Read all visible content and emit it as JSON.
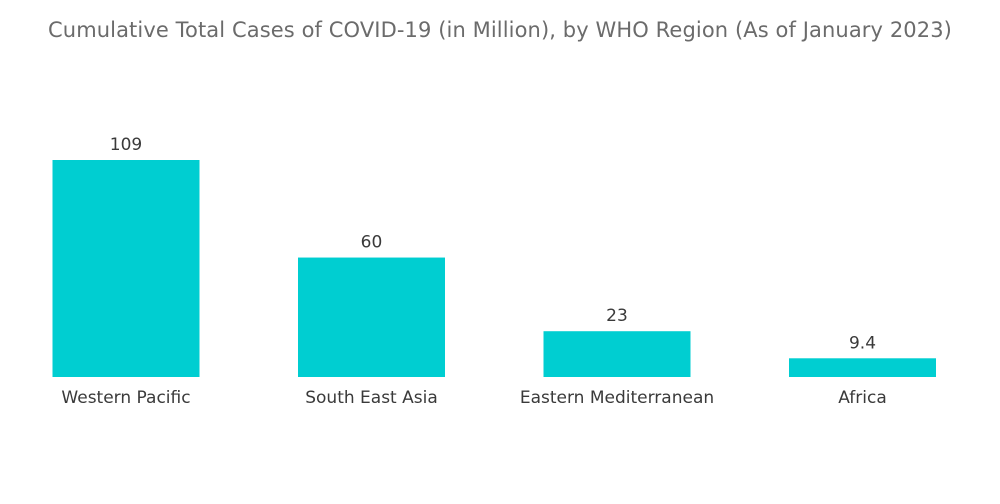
{
  "chart_data": {
    "type": "bar",
    "title": "Cumulative Total Cases of COVID-19 (in Million), by WHO Region (As of January 2023)",
    "categories": [
      "Western Pacific",
      "South East Asia",
      "Eastern Mediterranean",
      "Africa"
    ],
    "values": [
      109,
      60,
      23,
      9.4
    ],
    "value_labels": [
      "109",
      "60",
      "23",
      "9.4"
    ],
    "xlabel": "",
    "ylabel": "",
    "ylim": [
      0,
      109
    ],
    "grid": false,
    "legend": "none",
    "bar_color": "#00CED1"
  }
}
